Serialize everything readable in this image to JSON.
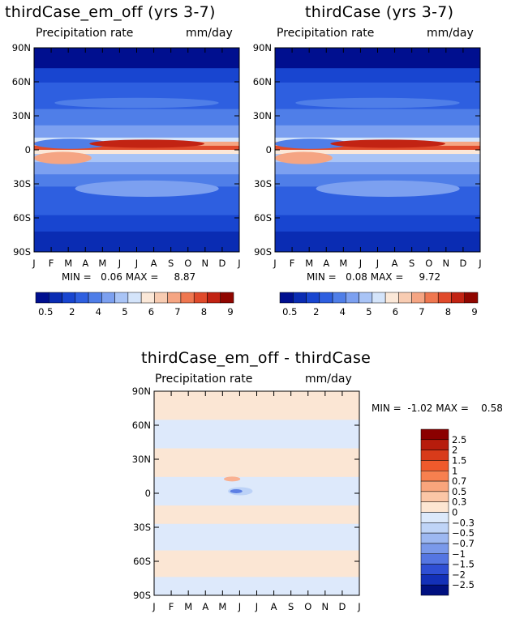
{
  "chart_data": [
    {
      "type": "heatmap",
      "title": "thirdCase_em_off (yrs 3-7)",
      "subtitle_left": "Precipitation rate",
      "subtitle_right": "mm/day",
      "x_ticks": [
        "J",
        "F",
        "M",
        "A",
        "M",
        "J",
        "J",
        "A",
        "S",
        "O",
        "N",
        "D",
        "J"
      ],
      "y_ticks": [
        "90N",
        "60N",
        "30N",
        "0",
        "30S",
        "60S",
        "90S"
      ],
      "ylim": [
        -90,
        90
      ],
      "stats": "MIN =   0.06 MAX =     8.87",
      "colorbar": {
        "orientation": "horizontal",
        "labels": [
          "0.5",
          "2",
          "4",
          "5",
          "6",
          "7",
          "8",
          "9"
        ],
        "colors": [
          "#000f8f",
          "#0a2cb3",
          "#1845d0",
          "#2e5fe0",
          "#4f7ee8",
          "#7ca0f0",
          "#a9c4f6",
          "#d4e4fa",
          "#fbe8d8",
          "#f8ccb2",
          "#f5a583",
          "#ef7750",
          "#e04a2b",
          "#c22313",
          "#900600"
        ]
      }
    },
    {
      "type": "heatmap",
      "title": "thirdCase (yrs 3-7)",
      "subtitle_left": "Precipitation rate",
      "subtitle_right": "mm/day",
      "x_ticks": [
        "J",
        "F",
        "M",
        "A",
        "M",
        "J",
        "J",
        "A",
        "S",
        "O",
        "N",
        "D",
        "J"
      ],
      "y_ticks": [
        "90N",
        "60N",
        "30N",
        "0",
        "30S",
        "60S",
        "90S"
      ],
      "ylim": [
        -90,
        90
      ],
      "stats": "MIN =   0.08 MAX =     9.72",
      "colorbar": {
        "orientation": "horizontal",
        "labels": [
          "0.5",
          "2",
          "4",
          "5",
          "6",
          "7",
          "8",
          "9"
        ],
        "colors": [
          "#000f8f",
          "#0a2cb3",
          "#1845d0",
          "#2e5fe0",
          "#4f7ee8",
          "#7ca0f0",
          "#a9c4f6",
          "#d4e4fa",
          "#fbe8d8",
          "#f8ccb2",
          "#f5a583",
          "#ef7750",
          "#e04a2b",
          "#c22313",
          "#900600"
        ]
      }
    },
    {
      "type": "heatmap",
      "title": "thirdCase_em_off - thirdCase",
      "subtitle_left": "Precipitation rate",
      "subtitle_right": "mm/day",
      "x_ticks": [
        "J",
        "F",
        "M",
        "A",
        "M",
        "J",
        "J",
        "A",
        "S",
        "O",
        "N",
        "D",
        "J"
      ],
      "y_ticks": [
        "90N",
        "60N",
        "30N",
        "0",
        "30S",
        "60S",
        "90S"
      ],
      "ylim": [
        -90,
        90
      ],
      "stats": "MIN =  -1.02 MAX =    0.58",
      "colorbar": {
        "orientation": "vertical",
        "labels": [
          "2.5",
          "2",
          "1.5",
          "1",
          "0.7",
          "0.5",
          "0.3",
          "0",
          "-0.3",
          "-0.5",
          "-0.7",
          "-1",
          "-1.5",
          "-2",
          "-2.5"
        ],
        "colors": [
          "#8b0000",
          "#b71c0c",
          "#d83b1a",
          "#ef5a2c",
          "#f7804f",
          "#f9a57c",
          "#fbc6a6",
          "#fde6d2",
          "#dce9fb",
          "#bfd4f7",
          "#9db8f1",
          "#7a99ea",
          "#5576e2",
          "#2f4fd4",
          "#1330b8",
          "#001080"
        ]
      }
    }
  ]
}
